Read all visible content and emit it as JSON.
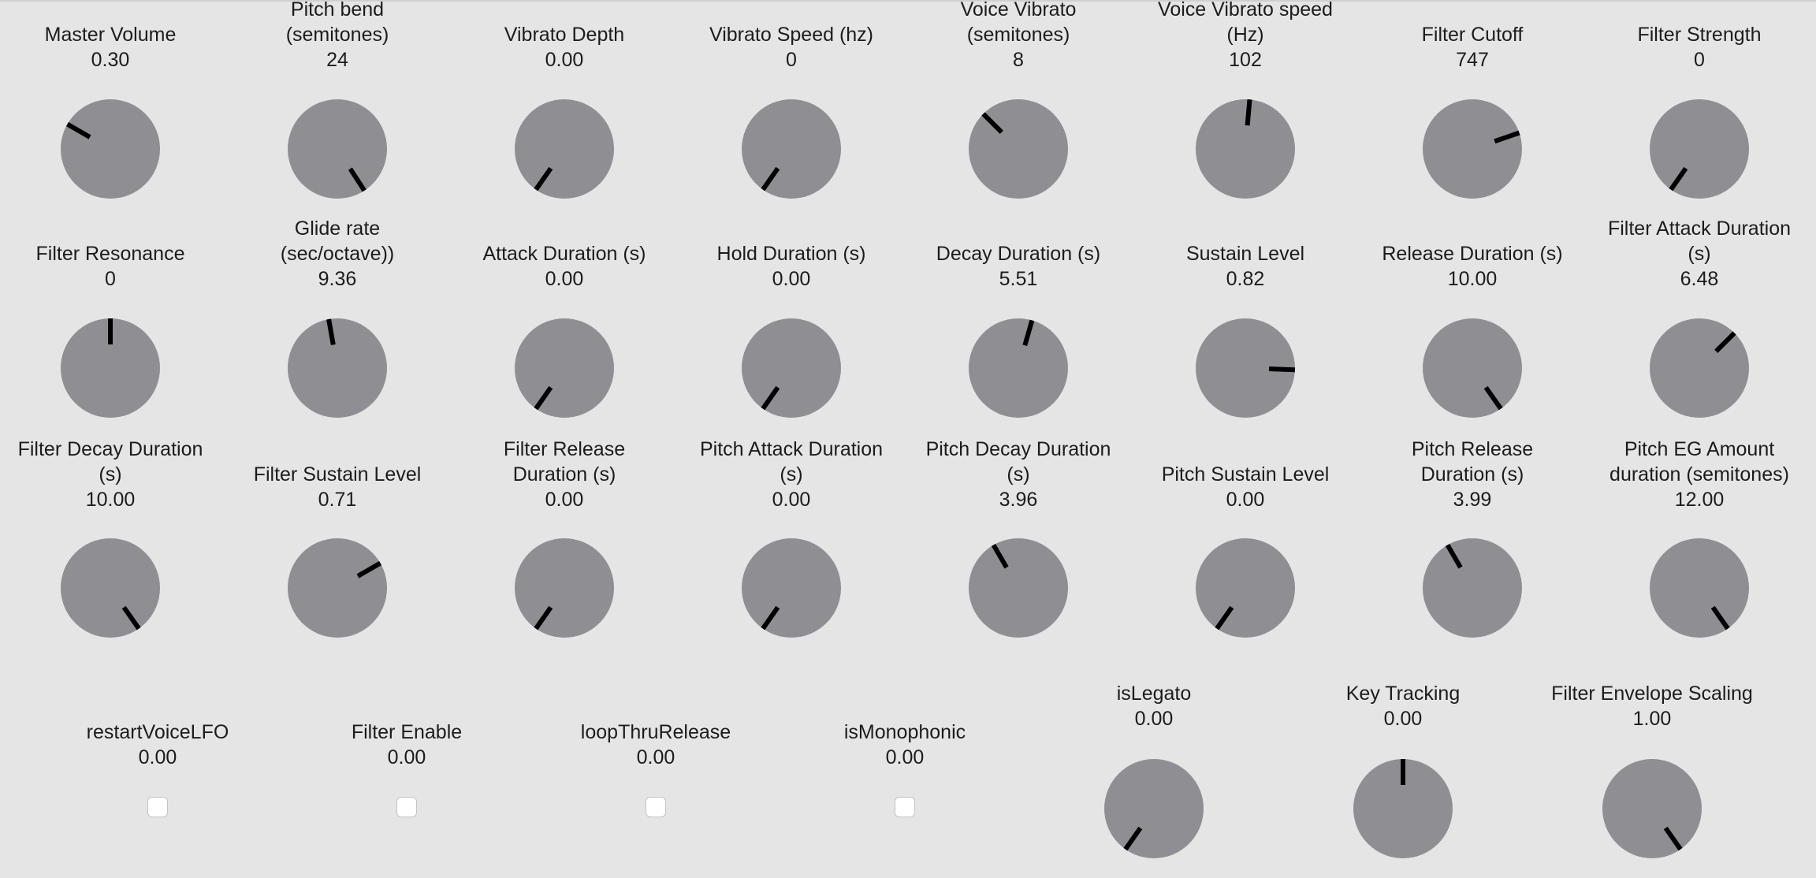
{
  "knobs": [
    {
      "label": "Master Volume",
      "value": "0.30",
      "angle": -60
    },
    {
      "label": "Pitch bend\n(semitones)",
      "value": "24",
      "angle": 147
    },
    {
      "label": "Vibrato Depth",
      "value": "0.00",
      "angle": -145
    },
    {
      "label": "Vibrato Speed (hz)",
      "value": "0",
      "angle": -145
    },
    {
      "label": "Voice Vibrato\n(semitones)",
      "value": "8",
      "angle": -45
    },
    {
      "label": "Voice Vibrato speed\n(Hz)",
      "value": "102",
      "angle": 5
    },
    {
      "label": "Filter Cutoff",
      "value": "747",
      "angle": 71
    },
    {
      "label": "Filter Strength",
      "value": "0",
      "angle": -145
    },
    {
      "label": "Filter Resonance",
      "value": "0",
      "angle": 0
    },
    {
      "label": "Glide rate\n(sec/octave))",
      "value": "9.36",
      "angle": -10
    },
    {
      "label": "Attack Duration (s)",
      "value": "0.00",
      "angle": -145
    },
    {
      "label": "Hold Duration (s)",
      "value": "0.00",
      "angle": -145
    },
    {
      "label": "Decay Duration (s)",
      "value": "5.51",
      "angle": 16
    },
    {
      "label": "Sustain Level",
      "value": "0.82",
      "angle": 92
    },
    {
      "label": "Release Duration (s)",
      "value": "10.00",
      "angle": 145
    },
    {
      "label": "Filter Attack Duration\n(s)",
      "value": "6.48",
      "angle": 45
    },
    {
      "label": "Filter Decay Duration\n(s)",
      "value": "10.00",
      "angle": 145
    },
    {
      "label": "Filter Sustain Level",
      "value": "0.71",
      "angle": 60
    },
    {
      "label": "Filter Release\nDuration (s)",
      "value": "0.00",
      "angle": -145
    },
    {
      "label": "Pitch Attack Duration\n(s)",
      "value": "0.00",
      "angle": -145
    },
    {
      "label": "Pitch Decay Duration\n(s)",
      "value": "3.96",
      "angle": -30
    },
    {
      "label": "Pitch Sustain Level",
      "value": "0.00",
      "angle": -145
    },
    {
      "label": "Pitch Release\nDuration (s)",
      "value": "3.99",
      "angle": -30
    },
    {
      "label": "Pitch EG Amount\nduration (semitones)",
      "value": "12.00",
      "angle": 145
    },
    {
      "label": "isLegato",
      "value": "0.00",
      "angle": -145
    },
    {
      "label": "Key Tracking",
      "value": "0.00",
      "angle": 0
    },
    {
      "label": "Filter Envelope Scaling",
      "value": "1.00",
      "angle": 145
    }
  ],
  "toggles": [
    {
      "label": "restartVoiceLFO",
      "value": "0.00",
      "checked": false
    },
    {
      "label": "Filter Enable",
      "value": "0.00",
      "checked": false
    },
    {
      "label": "loopThruRelease",
      "value": "0.00",
      "checked": false
    },
    {
      "label": "isMonophonic",
      "value": "0.00",
      "checked": false
    }
  ]
}
